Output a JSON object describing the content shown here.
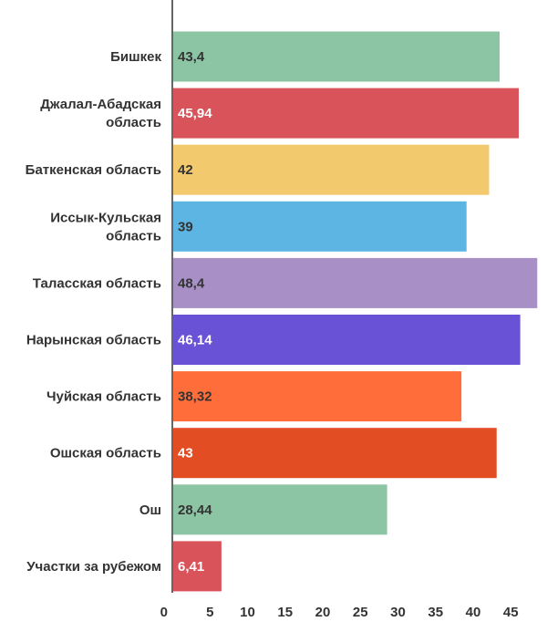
{
  "chart_data": {
    "type": "bar",
    "orientation": "horizontal",
    "categories": [
      [
        "Бишкек"
      ],
      [
        "Джалал-Абадская",
        "область"
      ],
      [
        "Баткенская область"
      ],
      [
        "Иссык-Кульская",
        "область"
      ],
      [
        "Таласская область"
      ],
      [
        "Нарынская область"
      ],
      [
        "Чуйская область"
      ],
      [
        "Ошская область"
      ],
      [
        "Ош"
      ],
      [
        "Участки за рубежом"
      ]
    ],
    "values": [
      43.4,
      45.94,
      42,
      39,
      48.4,
      46.14,
      38.32,
      43,
      28.44,
      6.41
    ],
    "value_labels": [
      "43,4",
      "45,94",
      "42",
      "39",
      "48,4",
      "46,14",
      "38,32",
      "43",
      "28,44",
      "6,41"
    ],
    "colors": [
      "#8cc5a3",
      "#d9535a",
      "#f2c96d",
      "#5cb5e3",
      "#a890c7",
      "#6a52d6",
      "#ff6e3a",
      "#e34d23",
      "#8cc5a3",
      "#d9535a"
    ],
    "label_colors": [
      "#333333",
      "#ffffff",
      "#333333",
      "#333333",
      "#333333",
      "#ffffff",
      "#333333",
      "#ffffff",
      "#333333",
      "#ffffff"
    ],
    "xticks": [
      0,
      5,
      10,
      15,
      20,
      25,
      30,
      35,
      40,
      45
    ],
    "xlim": [
      0,
      48.4
    ],
    "grid": false,
    "title": "",
    "xlabel": "",
    "ylabel": ""
  }
}
